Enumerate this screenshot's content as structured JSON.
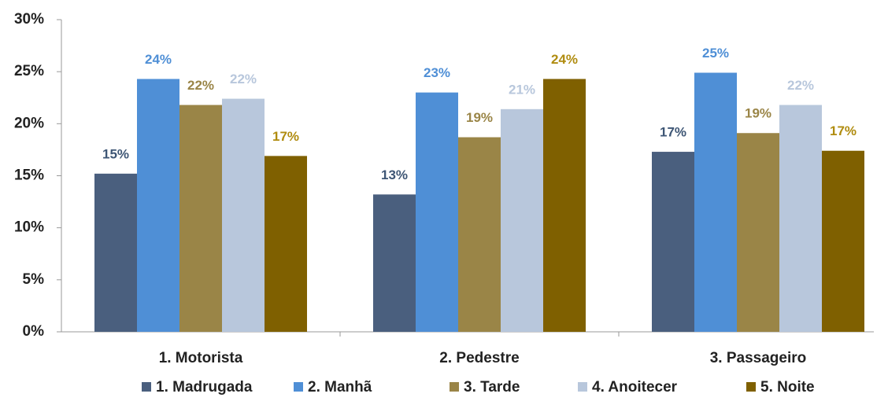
{
  "chart_data": {
    "type": "bar",
    "categories": [
      "1. Motorista",
      "2. Pedestre",
      "3. Passageiro"
    ],
    "series": [
      {
        "name": "1. Madrugada",
        "color": "#4a5f7e",
        "label_color": "#3e5675",
        "values": [
          15.2,
          13.2,
          17.3
        ],
        "value_labels": [
          "15%",
          "13%",
          "17%"
        ]
      },
      {
        "name": "2. Manhã",
        "color": "#4f8fd6",
        "label_color": "#4f8fd6",
        "values": [
          24.3,
          23.0,
          24.9
        ],
        "value_labels": [
          "24%",
          "23%",
          "25%"
        ]
      },
      {
        "name": "3. Tarde",
        "color": "#9a8547",
        "label_color": "#9a8547",
        "values": [
          21.8,
          18.7,
          19.1
        ],
        "value_labels": [
          "22%",
          "19%",
          "19%"
        ]
      },
      {
        "name": "4. Anoitecer",
        "color": "#b8c7dc",
        "label_color": "#b8c7dc",
        "values": [
          22.4,
          21.4,
          21.8
        ],
        "value_labels": [
          "22%",
          "21%",
          "22%"
        ]
      },
      {
        "name": "5. Noite",
        "color": "#7f6000",
        "label_color": "#b08c10",
        "values": [
          16.9,
          24.3,
          17.4
        ],
        "value_labels": [
          "17%",
          "24%",
          "17%"
        ]
      }
    ],
    "ylim": [
      0,
      30
    ],
    "yticks": [
      {
        "value": 0,
        "label": "0%"
      },
      {
        "value": 5,
        "label": "5%"
      },
      {
        "value": 10,
        "label": "10%"
      },
      {
        "value": 15,
        "label": "15%"
      },
      {
        "value": 20,
        "label": "20%"
      },
      {
        "value": 25,
        "label": "25%"
      },
      {
        "value": 30,
        "label": "30%"
      }
    ],
    "grid": false,
    "legend": "bottom"
  }
}
